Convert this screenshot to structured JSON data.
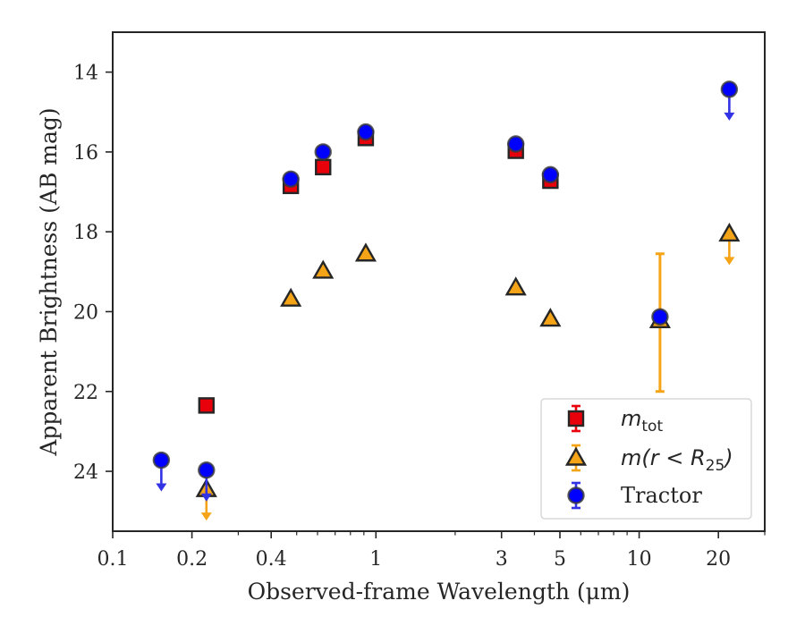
{
  "chart_data": {
    "type": "scatter",
    "xlabel": "Observed-frame Wavelength (μm)",
    "ylabel": "Apparent Brightness (AB mag)",
    "x_scale": "log",
    "xlim": [
      0.1,
      30
    ],
    "ylim": [
      25.5,
      13
    ],
    "y_inverted": true,
    "x_ticks": [
      0.1,
      0.2,
      0.4,
      1,
      3,
      5,
      10,
      20
    ],
    "x_tick_labels": [
      "0.1",
      "0.2",
      "0.4",
      "1",
      "3",
      "5",
      "10",
      "20"
    ],
    "y_ticks": [
      14,
      16,
      18,
      20,
      22,
      24
    ],
    "y_tick_labels": [
      "14",
      "16",
      "18",
      "20",
      "22",
      "24"
    ],
    "grid": false,
    "legend_position": "bottom-right",
    "legend": [
      {
        "base": "m",
        "sub": "tot",
        "rest": ""
      },
      {
        "base": "m(r < R",
        "sub": "25",
        "rest": ")"
      },
      {
        "base": "Tractor",
        "sub": "",
        "rest": ""
      }
    ],
    "series": [
      {
        "marker": "square",
        "color": "#e8000b",
        "errcolor": "#e8000b",
        "points": [
          {
            "x": 0.227,
            "y": 22.35
          },
          {
            "x": 0.475,
            "y": 16.85
          },
          {
            "x": 0.63,
            "y": 16.38
          },
          {
            "x": 0.915,
            "y": 15.65
          },
          {
            "x": 3.4,
            "y": 15.97
          },
          {
            "x": 4.6,
            "y": 16.72
          }
        ]
      },
      {
        "marker": "triangle",
        "color": "#f5a418",
        "errcolor": "#f5a418",
        "points": [
          {
            "x": 0.227,
            "y": 24.45,
            "upper_limit": true
          },
          {
            "x": 0.475,
            "y": 19.68
          },
          {
            "x": 0.63,
            "y": 18.98
          },
          {
            "x": 0.915,
            "y": 18.55
          },
          {
            "x": 3.4,
            "y": 19.4
          },
          {
            "x": 4.6,
            "y": 20.18
          },
          {
            "x": 12.0,
            "y": 20.22,
            "yerr": [
              18.55,
              22.0
            ]
          },
          {
            "x": 22.0,
            "y": 18.05,
            "upper_limit": true
          }
        ]
      },
      {
        "marker": "circle",
        "color": "#0000ff",
        "errcolor": "#3333e6",
        "points": [
          {
            "x": 0.153,
            "y": 23.72,
            "upper_limit": true
          },
          {
            "x": 0.227,
            "y": 23.97,
            "upper_limit": true
          },
          {
            "x": 0.475,
            "y": 16.68
          },
          {
            "x": 0.63,
            "y": 16.0
          },
          {
            "x": 0.915,
            "y": 15.5
          },
          {
            "x": 3.4,
            "y": 15.8
          },
          {
            "x": 4.6,
            "y": 16.57
          },
          {
            "x": 12.0,
            "y": 20.13
          },
          {
            "x": 22.0,
            "y": 14.43,
            "upper_limit": true
          }
        ]
      }
    ]
  }
}
